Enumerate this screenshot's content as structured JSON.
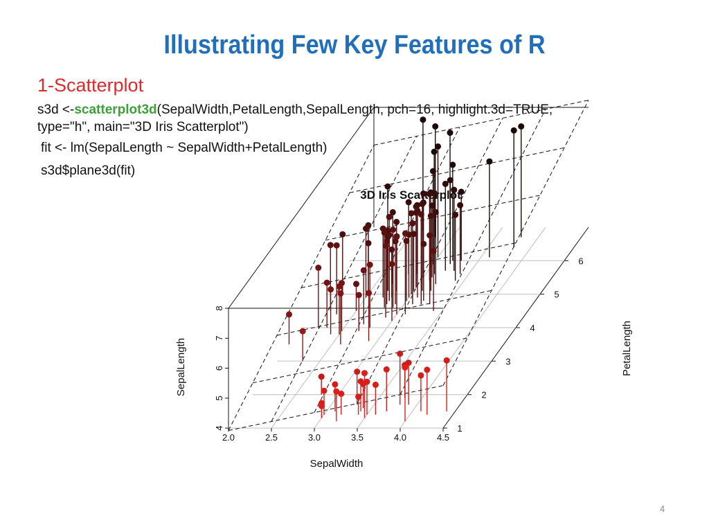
{
  "slide": {
    "title": "Illustrating Few Key Features of R",
    "section_heading": "1-Scatterplot",
    "code": {
      "line1_prefix": "s3d <-",
      "line1_fn": "scatterplot3d",
      "line1_suffix": "(SepalWidth,PetalLength,SepalLength, pch=16, highlight.3d=TRUE,",
      "line2": "type=\"h\", main=\"3D Iris Scatterplot\")",
      "line3": "fit <- lm(SepalLength ~ SepalWidth+PetalLength)",
      "line4": "s3d$plane3d(fit)"
    },
    "page_number": "4"
  },
  "chart_data": {
    "type": "scatter",
    "title": "3D Iris Scatterplot",
    "xlabel": "SepalWidth",
    "ylabel": "SepalLength",
    "zlabel": "PetalLength",
    "x_ticks": [
      "2.0",
      "2.5",
      "3.0",
      "3.5",
      "4.0",
      "4.5"
    ],
    "y_ticks": [
      "4",
      "5",
      "6",
      "7",
      "8"
    ],
    "z_ticks": [
      "1",
      "2",
      "3",
      "4",
      "5",
      "6"
    ],
    "xlim": [
      2.0,
      4.5
    ],
    "ylim": [
      4,
      8
    ],
    "zlim": [
      1,
      7
    ],
    "style": "3d scatter with vertical drop lines (highlight.3d) and fitted regression plane",
    "color_near": "#e8201c",
    "color_far": "#1a0a0a",
    "points": [
      {
        "x": 2.3,
        "z": 3.0,
        "y": 5.0
      },
      {
        "x": 2.8,
        "z": 2.0,
        "y": 4.6
      },
      {
        "x": 2.5,
        "z": 3.8,
        "y": 5.6
      },
      {
        "x": 3.0,
        "z": 1.3,
        "y": 4.4
      },
      {
        "x": 3.2,
        "z": 1.4,
        "y": 4.7
      },
      {
        "x": 3.4,
        "z": 1.5,
        "y": 5.0
      },
      {
        "x": 3.5,
        "z": 1.4,
        "y": 5.1
      },
      {
        "x": 3.6,
        "z": 1.4,
        "y": 5.0
      },
      {
        "x": 3.9,
        "z": 1.7,
        "y": 5.4
      },
      {
        "x": 3.4,
        "z": 1.4,
        "y": 4.6
      },
      {
        "x": 3.1,
        "z": 1.5,
        "y": 4.9
      },
      {
        "x": 3.7,
        "z": 1.5,
        "y": 5.4
      },
      {
        "x": 3.0,
        "z": 1.4,
        "y": 4.8
      },
      {
        "x": 4.0,
        "z": 1.2,
        "y": 5.8
      },
      {
        "x": 4.4,
        "z": 1.5,
        "y": 5.7
      },
      {
        "x": 3.8,
        "z": 1.7,
        "y": 5.7
      },
      {
        "x": 3.3,
        "z": 1.7,
        "y": 5.1
      },
      {
        "x": 3.2,
        "z": 1.2,
        "y": 5.0
      },
      {
        "x": 4.1,
        "z": 1.5,
        "y": 5.2
      },
      {
        "x": 4.2,
        "z": 1.4,
        "y": 5.5
      },
      {
        "x": 3.0,
        "z": 1.3,
        "y": 4.5
      },
      {
        "x": 3.8,
        "z": 1.9,
        "y": 5.1
      },
      {
        "x": 3.5,
        "z": 1.3,
        "y": 5.5
      },
      {
        "x": 3.4,
        "z": 1.6,
        "y": 4.8
      },
      {
        "x": 3.2,
        "z": 4.7,
        "y": 7.0
      },
      {
        "x": 3.1,
        "z": 4.9,
        "y": 6.9
      },
      {
        "x": 2.3,
        "z": 4.0,
        "y": 5.5
      },
      {
        "x": 2.8,
        "z": 4.6,
        "y": 6.5
      },
      {
        "x": 3.3,
        "z": 4.7,
        "y": 6.3
      },
      {
        "x": 2.9,
        "z": 4.6,
        "y": 6.6
      },
      {
        "x": 2.7,
        "z": 3.9,
        "y": 5.2
      },
      {
        "x": 2.0,
        "z": 3.5,
        "y": 5.0
      },
      {
        "x": 3.0,
        "z": 4.2,
        "y": 5.9
      },
      {
        "x": 2.2,
        "z": 4.0,
        "y": 6.0
      },
      {
        "x": 2.9,
        "z": 4.7,
        "y": 6.1
      },
      {
        "x": 2.9,
        "z": 3.6,
        "y": 5.6
      },
      {
        "x": 3.1,
        "z": 4.4,
        "y": 6.7
      },
      {
        "x": 2.7,
        "z": 4.1,
        "y": 5.8
      },
      {
        "x": 2.2,
        "z": 4.5,
        "y": 6.2
      },
      {
        "x": 2.5,
        "z": 3.9,
        "y": 5.6
      },
      {
        "x": 3.2,
        "z": 4.8,
        "y": 5.9
      },
      {
        "x": 2.8,
        "z": 4.0,
        "y": 6.1
      },
      {
        "x": 2.5,
        "z": 4.9,
        "y": 6.3
      },
      {
        "x": 2.8,
        "z": 4.7,
        "y": 6.1
      },
      {
        "x": 2.9,
        "z": 4.3,
        "y": 6.4
      },
      {
        "x": 3.0,
        "z": 4.4,
        "y": 6.6
      },
      {
        "x": 2.8,
        "z": 4.8,
        "y": 6.8
      },
      {
        "x": 3.0,
        "z": 5.0,
        "y": 6.7
      },
      {
        "x": 2.6,
        "z": 3.5,
        "y": 5.7
      },
      {
        "x": 2.4,
        "z": 3.8,
        "y": 5.5
      },
      {
        "x": 2.7,
        "z": 5.1,
        "y": 6.0
      },
      {
        "x": 3.4,
        "z": 4.5,
        "y": 6.0
      },
      {
        "x": 3.1,
        "z": 4.7,
        "y": 6.7
      },
      {
        "x": 2.3,
        "z": 4.4,
        "y": 6.3
      },
      {
        "x": 3.3,
        "z": 6.0,
        "y": 6.3
      },
      {
        "x": 2.7,
        "z": 5.1,
        "y": 5.8
      },
      {
        "x": 3.0,
        "z": 5.9,
        "y": 7.1
      },
      {
        "x": 2.9,
        "z": 5.6,
        "y": 6.3
      },
      {
        "x": 3.0,
        "z": 5.8,
        "y": 6.5
      },
      {
        "x": 3.0,
        "z": 6.6,
        "y": 7.6
      },
      {
        "x": 2.5,
        "z": 4.5,
        "y": 4.9
      },
      {
        "x": 2.9,
        "z": 6.3,
        "y": 7.3
      },
      {
        "x": 2.5,
        "z": 5.8,
        "y": 6.7
      },
      {
        "x": 3.6,
        "z": 6.1,
        "y": 7.2
      },
      {
        "x": 3.2,
        "z": 5.1,
        "y": 6.5
      },
      {
        "x": 2.7,
        "z": 5.3,
        "y": 6.4
      },
      {
        "x": 3.0,
        "z": 5.5,
        "y": 6.8
      },
      {
        "x": 2.5,
        "z": 5.0,
        "y": 5.7
      },
      {
        "x": 2.8,
        "z": 5.1,
        "y": 5.8
      },
      {
        "x": 3.2,
        "z": 5.3,
        "y": 6.4
      },
      {
        "x": 3.0,
        "z": 5.5,
        "y": 6.5
      },
      {
        "x": 3.8,
        "z": 6.7,
        "y": 7.7
      },
      {
        "x": 2.6,
        "z": 6.9,
        "y": 7.7
      },
      {
        "x": 2.2,
        "z": 5.0,
        "y": 6.0
      },
      {
        "x": 3.2,
        "z": 5.7,
        "y": 6.9
      },
      {
        "x": 2.8,
        "z": 4.9,
        "y": 5.6
      },
      {
        "x": 2.8,
        "z": 6.7,
        "y": 7.7
      },
      {
        "x": 2.7,
        "z": 4.9,
        "y": 6.3
      },
      {
        "x": 3.3,
        "z": 5.7,
        "y": 6.7
      },
      {
        "x": 3.2,
        "z": 6.0,
        "y": 7.2
      },
      {
        "x": 2.8,
        "z": 4.8,
        "y": 6.2
      },
      {
        "x": 3.0,
        "z": 4.9,
        "y": 6.1
      },
      {
        "x": 2.8,
        "z": 5.6,
        "y": 6.4
      },
      {
        "x": 3.8,
        "z": 6.4,
        "y": 7.9
      },
      {
        "x": 2.8,
        "z": 5.1,
        "y": 6.3
      },
      {
        "x": 3.0,
        "z": 6.1,
        "y": 7.7
      },
      {
        "x": 3.4,
        "z": 5.6,
        "y": 6.3
      },
      {
        "x": 3.1,
        "z": 5.5,
        "y": 6.4
      },
      {
        "x": 3.0,
        "z": 4.8,
        "y": 6.0
      },
      {
        "x": 3.1,
        "z": 5.4,
        "y": 6.9
      },
      {
        "x": 3.1,
        "z": 5.6,
        "y": 6.7
      },
      {
        "x": 3.1,
        "z": 5.1,
        "y": 6.9
      },
      {
        "x": 3.2,
        "z": 5.9,
        "y": 6.8
      },
      {
        "x": 3.3,
        "z": 5.7,
        "y": 6.7
      },
      {
        "x": 3.0,
        "z": 5.2,
        "y": 6.7
      },
      {
        "x": 2.5,
        "z": 5.0,
        "y": 6.3
      },
      {
        "x": 3.0,
        "z": 5.2,
        "y": 6.5
      },
      {
        "x": 3.4,
        "z": 5.4,
        "y": 6.2
      },
      {
        "x": 3.0,
        "z": 5.1,
        "y": 5.9
      }
    ],
    "plane": {
      "intercept": 2.25,
      "b_x": 0.6,
      "b_z": 0.47
    }
  }
}
